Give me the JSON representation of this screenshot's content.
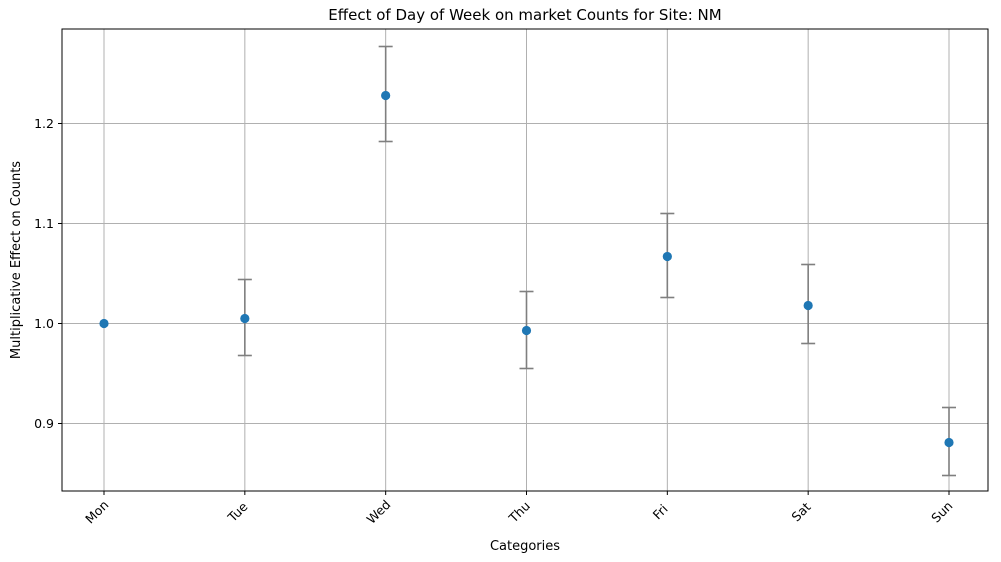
{
  "chart_data": {
    "type": "scatter",
    "title": "Effect of Day of Week on market Counts for Site: NM",
    "xlabel": "Categories",
    "ylabel": "Multiplicative Effect on Counts",
    "categories": [
      "Mon",
      "Tue",
      "Wed",
      "Thu",
      "Fri",
      "Sat",
      "Sun"
    ],
    "values": [
      1.0,
      1.005,
      1.228,
      0.993,
      1.067,
      1.018,
      0.881
    ],
    "error_low": [
      1.0,
      0.968,
      1.182,
      0.955,
      1.026,
      0.98,
      0.848
    ],
    "error_high": [
      1.0,
      1.044,
      1.277,
      1.032,
      1.11,
      1.059,
      0.916
    ],
    "ylim": [
      0.8325,
      1.2945
    ],
    "yticks": [
      0.9,
      1.0,
      1.1,
      1.2
    ],
    "ytick_labels": [
      "0.9",
      "1.0",
      "1.1",
      "1.2"
    ],
    "grid": true,
    "point_color": "#1f77b4",
    "error_color": "#7f7f7f"
  }
}
